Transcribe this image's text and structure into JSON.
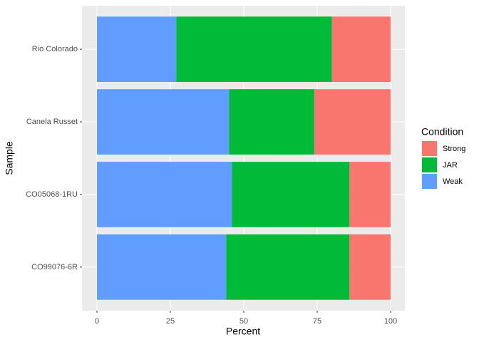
{
  "chart_data": {
    "type": "stacked-barh",
    "x_label": "Percent",
    "y_label": "Sample",
    "legend_title": "Condition",
    "categories": [
      "Rio Colorado",
      "Canela Russet",
      "CO05068-1RU",
      "CO99076-6R"
    ],
    "series": [
      {
        "name": "Strong",
        "color": "#F8766D",
        "values": [
          20,
          26,
          14,
          14
        ]
      },
      {
        "name": "JAR",
        "color": "#00BA38",
        "values": [
          53,
          29,
          40,
          42
        ]
      },
      {
        "name": "Weak",
        "color": "#619CFF",
        "values": [
          27,
          45,
          46,
          44
        ]
      }
    ],
    "xlim": [
      0,
      100
    ],
    "xticks": [
      0,
      25,
      50,
      75,
      100
    ],
    "grid": true,
    "legend": "right"
  }
}
